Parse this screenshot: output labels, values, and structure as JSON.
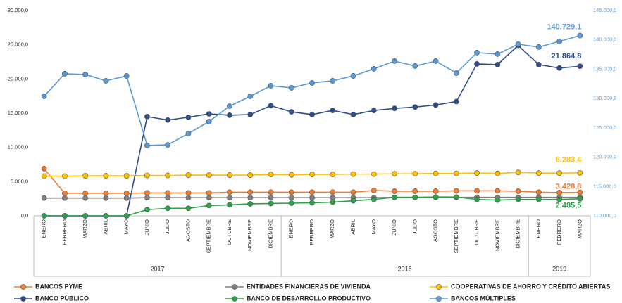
{
  "chart_data": {
    "type": "line",
    "categories": [
      "ENERO",
      "FEBRERO",
      "MARZO",
      "ABRIL",
      "MAYO",
      "JUNIO",
      "JULIO",
      "AGOSTO",
      "SEPTIEMBRE",
      "OCTUBRE",
      "NOVIEMBRE",
      "DICIEMBRE",
      "ENERO",
      "FEBRERO",
      "MARZO",
      "ABRIL",
      "MAYO",
      "JUNIO",
      "JULIO",
      "AGOSTO",
      "SEPTIEMBRE",
      "OCTUBRE",
      "NOVIEMBRE",
      "DICIEMBRE",
      "ENERO",
      "FEBRERO",
      "MARZO"
    ],
    "groups": [
      {
        "label": "2017",
        "size": 12
      },
      {
        "label": "2018",
        "size": 12
      },
      {
        "label": "2019",
        "size": 3
      }
    ],
    "ylim": [
      0,
      30000
    ],
    "yticks": [
      {
        "value": 0,
        "label": "0,0"
      },
      {
        "value": 5000,
        "label": "5.000,0"
      },
      {
        "value": 10000,
        "label": "10.000,0"
      },
      {
        "value": 15000,
        "label": "15.000,0"
      },
      {
        "value": 20000,
        "label": "20.000,0"
      },
      {
        "value": 25000,
        "label": "25.000,0"
      },
      {
        "value": 30000,
        "label": "30.000,0"
      }
    ],
    "y2lim": [
      110000,
      145000
    ],
    "y2ticks": [
      {
        "value": 110000,
        "label": "110.000,0"
      },
      {
        "value": 115000,
        "label": "115.000,0"
      },
      {
        "value": 120000,
        "label": "120.000,0"
      },
      {
        "value": 125000,
        "label": "125.000,0"
      },
      {
        "value": 130000,
        "label": "130.000,0"
      },
      {
        "value": 135000,
        "label": "135.000,0"
      },
      {
        "value": 140000,
        "label": "140.000,0"
      },
      {
        "value": 145000,
        "label": "145.000,0"
      }
    ],
    "series": [
      {
        "name": "BANCOS PYME",
        "color": "#ed7d31",
        "values": [
          6900,
          3300,
          3300,
          3300,
          3300,
          3350,
          3350,
          3350,
          3350,
          3450,
          3450,
          3450,
          3450,
          3450,
          3450,
          3450,
          3700,
          3600,
          3600,
          3600,
          3650,
          3650,
          3650,
          3600,
          3450,
          3400,
          3428.8
        ],
        "value_labels": [
          null,
          null,
          null,
          null,
          null,
          null,
          null,
          null,
          null,
          null,
          null,
          null,
          null,
          null,
          null,
          null,
          null,
          null,
          null,
          null,
          null,
          null,
          null,
          null,
          null,
          null,
          "3.428,8"
        ]
      },
      {
        "name": "ENTIDADES FINANCIERAS DE VIVIENDA",
        "color": "#7f7f7f",
        "values": [
          2600,
          2600,
          2600,
          2600,
          2600,
          2650,
          2650,
          2650,
          2650,
          2650,
          2650,
          2650,
          2650,
          2650,
          2650,
          2650,
          2650,
          2700,
          2700,
          2700,
          2700,
          2700,
          2700,
          2700,
          2700,
          2700,
          2700
        ]
      },
      {
        "name": "COOPERATIVAS DE AHORRO Y CRÉDITO ABIERTAS",
        "color": "#ffc000",
        "values": [
          5800,
          5800,
          5850,
          5850,
          5850,
          5900,
          5900,
          5950,
          5950,
          5950,
          5950,
          6050,
          6000,
          6050,
          6050,
          6100,
          6100,
          6150,
          6150,
          6200,
          6200,
          6250,
          6200,
          6350,
          6250,
          6250,
          6283.4
        ],
        "value_labels": [
          null,
          null,
          null,
          null,
          null,
          null,
          null,
          null,
          null,
          null,
          null,
          null,
          null,
          null,
          null,
          null,
          null,
          null,
          null,
          null,
          null,
          null,
          null,
          null,
          null,
          null,
          "6.283,4"
        ]
      },
      {
        "name": "BANCO PÚBLICO",
        "color": "#2f4d8a",
        "values": [
          0,
          0,
          0,
          0,
          0,
          14500,
          14000,
          14400,
          14900,
          14700,
          14800,
          16100,
          15200,
          14800,
          15400,
          14800,
          15400,
          15700,
          15900,
          16200,
          16700,
          22200,
          22100,
          24900,
          22100,
          21600,
          21864.8
        ],
        "value_labels": [
          null,
          null,
          null,
          null,
          null,
          null,
          null,
          null,
          null,
          null,
          null,
          null,
          null,
          null,
          null,
          null,
          null,
          null,
          null,
          null,
          null,
          null,
          null,
          null,
          null,
          null,
          "21.864,8"
        ]
      },
      {
        "name": "BANCO DE DESARROLLO PRODUCTIVO",
        "color": "#2ea24a",
        "values": [
          0,
          0,
          0,
          0,
          0,
          900,
          1100,
          1100,
          1500,
          1600,
          1750,
          1800,
          1850,
          1900,
          2000,
          2200,
          2400,
          2700,
          2700,
          2750,
          2750,
          2400,
          2300,
          2400,
          2400,
          2400,
          2485.5
        ],
        "value_labels": [
          null,
          null,
          null,
          null,
          null,
          null,
          null,
          null,
          null,
          null,
          null,
          null,
          null,
          null,
          null,
          null,
          null,
          null,
          null,
          null,
          null,
          null,
          null,
          null,
          null,
          null,
          "2.485,5"
        ]
      },
      {
        "name": "BANCOS MÚLTIPLES",
        "color": "#5b9bd5",
        "axis": "y2",
        "values": [
          130380,
          134220,
          134100,
          133020,
          133860,
          122000,
          122110,
          124030,
          126070,
          128700,
          130380,
          132180,
          131820,
          132660,
          133020,
          133860,
          135060,
          136380,
          135540,
          136380,
          134340,
          137820,
          137580,
          139260,
          138780,
          139740,
          140729.1
        ],
        "value_labels": [
          null,
          null,
          null,
          null,
          null,
          null,
          null,
          null,
          null,
          null,
          null,
          null,
          null,
          null,
          null,
          null,
          null,
          null,
          null,
          null,
          null,
          null,
          null,
          null,
          null,
          null,
          "140.729,1"
        ]
      }
    ]
  }
}
